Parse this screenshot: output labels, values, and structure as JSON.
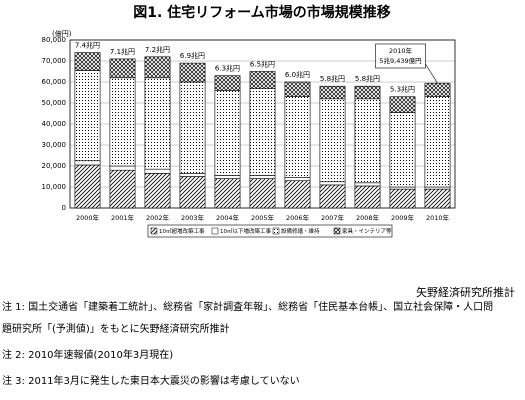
{
  "chart_data": {
    "type": "stacked-bar",
    "title": "図1. 住宅リフォーム市場の市場規模推移",
    "y_unit": "(億円)",
    "categories": [
      "2000年",
      "2001年",
      "2002年",
      "2003年",
      "2004年",
      "2005年",
      "2006年",
      "2007年",
      "2008年",
      "2009年",
      "2010年"
    ],
    "series": [
      {
        "name": "10㎡超増改築工事",
        "values": [
          20500,
          18000,
          16500,
          15000,
          14000,
          14000,
          13000,
          11000,
          10500,
          9000,
          9000
        ]
      },
      {
        "name": "10㎡以下増改築工事",
        "values": [
          2000,
          2000,
          2000,
          1500,
          1500,
          1500,
          1500,
          1500,
          1500,
          1000,
          1000
        ]
      },
      {
        "name": "設備修繕・維持",
        "values": [
          43000,
          42000,
          43500,
          43500,
          40500,
          41500,
          38500,
          39500,
          40000,
          35500,
          43000
        ]
      },
      {
        "name": "家具・インテリア等",
        "values": [
          8500,
          9000,
          10000,
          9000,
          7000,
          8000,
          7000,
          6000,
          6000,
          7500,
          6439
        ]
      }
    ],
    "total_labels": [
      "7.4兆円",
      "7.1兆円",
      "7.2兆円",
      "6.9兆円",
      "6.3兆円",
      "6.5兆円",
      "6.0兆円",
      "5.8兆円",
      "5.8兆円",
      "5.3兆円"
    ],
    "callout": [
      "2010年",
      "5兆9,439億円"
    ],
    "ylim": [
      0,
      80000
    ],
    "yticks": [
      0,
      {
        "value": 10000,
        "label": "10,000"
      },
      {
        "value": 20000,
        "label": "20,000"
      },
      {
        "value": 30000,
        "label": "30,000"
      },
      {
        "value": 40000,
        "label": "40,000"
      },
      {
        "value": 50000,
        "label": "50,000"
      },
      {
        "value": 60000,
        "label": "60,000"
      },
      {
        "value": 70000,
        "label": "70,000"
      },
      {
        "value": 80000,
        "label": "80,000"
      }
    ],
    "grid": true
  },
  "source": "矢野経済研究所推計",
  "notes": [
    "注 1: 国土交通省「建築着工統計」、総務省「家計調査年報」、総務省「住民基本台帳」、国立社会保障・人口問",
    "題研究所「(予測値)」をもとに矢野経済研究所推計",
    "注 2: 2010年速報値(2010年3月現在)",
    "注 3: 2011年3月に発生した東日本大震災の影響は考慮していない"
  ]
}
